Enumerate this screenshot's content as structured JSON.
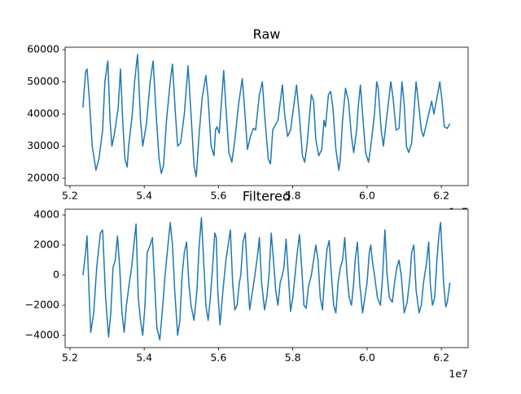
{
  "chart_data": [
    {
      "type": "line",
      "title": "Raw",
      "x_offset": "1e7",
      "color": "#1f77b4",
      "xlim": [
        51870000,
        62720000
      ],
      "ylim": [
        17720,
        60760
      ],
      "xticks": [
        {
          "value": 52000000,
          "label": "5.2"
        },
        {
          "value": 54000000,
          "label": "5.4"
        },
        {
          "value": 56000000,
          "label": "5.6"
        },
        {
          "value": 58000000,
          "label": "5.8"
        },
        {
          "value": 60000000,
          "label": "6.0"
        },
        {
          "value": 62000000,
          "label": "6.2"
        }
      ],
      "yticks": [
        20000,
        30000,
        40000,
        50000,
        60000
      ],
      "x": [
        52350000,
        52420000,
        52460000,
        52520000,
        52600000,
        52700000,
        52780000,
        52880000,
        52940000,
        53020000,
        53080000,
        53130000,
        53200000,
        53300000,
        53360000,
        53420000,
        53480000,
        53540000,
        53580000,
        53680000,
        53740000,
        53820000,
        53900000,
        53960000,
        54060000,
        54160000,
        54240000,
        54320000,
        54400000,
        54460000,
        54520000,
        54600000,
        54700000,
        54760000,
        54840000,
        54900000,
        54980000,
        55080000,
        55180000,
        55260000,
        55340000,
        55400000,
        55480000,
        55560000,
        55660000,
        55720000,
        55800000,
        55880000,
        55920000,
        55960000,
        56020000,
        56140000,
        56200000,
        56280000,
        56360000,
        56440000,
        56540000,
        56640000,
        56700000,
        56780000,
        56860000,
        56940000,
        57000000,
        57100000,
        57180000,
        57240000,
        57340000,
        57400000,
        57460000,
        57500000,
        57600000,
        57720000,
        57780000,
        57860000,
        57940000,
        58020000,
        58100000,
        58180000,
        58260000,
        58320000,
        58380000,
        58440000,
        58500000,
        58560000,
        58620000,
        58700000,
        58780000,
        58840000,
        58880000,
        58960000,
        59020000,
        59080000,
        59160000,
        59240000,
        59280000,
        59340000,
        59420000,
        59500000,
        59580000,
        59640000,
        59720000,
        59760000,
        59820000,
        59880000,
        59960000,
        60040000,
        60100000,
        60200000,
        60260000,
        60300000,
        60380000,
        60440000,
        60500000,
        60580000,
        60640000,
        60700000,
        60780000,
        60860000,
        60940000,
        61000000,
        61060000,
        61120000,
        61200000,
        61260000,
        61320000,
        61380000,
        61460000,
        61520000,
        61580000,
        61680000,
        61740000,
        61800000,
        61960000,
        62020000,
        62080000,
        62160000,
        62230000
      ],
      "values": [
        42000,
        53000,
        54000,
        45000,
        30000,
        22500,
        26000,
        35000,
        50000,
        56500,
        38000,
        30000,
        34000,
        42000,
        54000,
        38000,
        26000,
        23500,
        30000,
        40000,
        50000,
        58500,
        38000,
        30000,
        37000,
        50000,
        56500,
        40000,
        26000,
        21500,
        24000,
        38000,
        50000,
        55500,
        40000,
        30000,
        31000,
        40000,
        55000,
        40000,
        24000,
        20500,
        34000,
        45000,
        52000,
        45000,
        30000,
        27000,
        35000,
        36000,
        34000,
        53500,
        42000,
        28000,
        25000,
        32000,
        43000,
        51000,
        42000,
        29000,
        33000,
        35500,
        35000,
        46000,
        50000,
        40000,
        26000,
        24500,
        35000,
        36000,
        38000,
        49000,
        40000,
        33000,
        35000,
        42000,
        49000,
        39000,
        27000,
        25000,
        30000,
        38000,
        46000,
        44000,
        32000,
        27000,
        29000,
        38000,
        36000,
        46000,
        47000,
        42000,
        29000,
        22500,
        26000,
        38000,
        48000,
        44000,
        33000,
        28000,
        35000,
        42000,
        49000,
        40000,
        28000,
        25000,
        30000,
        40000,
        50000,
        48000,
        35000,
        30000,
        36000,
        44000,
        50000,
        45000,
        35000,
        35500,
        50000,
        43000,
        30000,
        28000,
        31000,
        40000,
        50000,
        44000,
        35000,
        33000,
        36000,
        41000,
        44000,
        40000,
        50000,
        44000,
        36000,
        35500,
        37000
      ]
    },
    {
      "type": "line",
      "title": "Filtered",
      "x_offset": "1e7",
      "color": "#1f77b4",
      "xlim": [
        51870000,
        62720000
      ],
      "ylim": [
        -4810,
        4380
      ],
      "xticks": [
        {
          "value": 52000000,
          "label": "5.2"
        },
        {
          "value": 54000000,
          "label": "5.4"
        },
        {
          "value": 56000000,
          "label": "5.6"
        },
        {
          "value": 58000000,
          "label": "5.8"
        },
        {
          "value": 60000000,
          "label": "6.0"
        },
        {
          "value": 62000000,
          "label": "6.2"
        }
      ],
      "yticks": [
        {
          "value": -4000,
          "label": "−4000"
        },
        {
          "value": -2000,
          "label": "−2000"
        },
        0,
        2000,
        4000
      ],
      "x": [
        52350000,
        52420000,
        52460000,
        52520000,
        52560000,
        52640000,
        52720000,
        52820000,
        52880000,
        52960000,
        53040000,
        53100000,
        53160000,
        53220000,
        53280000,
        53340000,
        53400000,
        53460000,
        53520000,
        53600000,
        53660000,
        53720000,
        53780000,
        53840000,
        53900000,
        53960000,
        54020000,
        54080000,
        54160000,
        54220000,
        54280000,
        54340000,
        54420000,
        54500000,
        54560000,
        54620000,
        54700000,
        54760000,
        54820000,
        54900000,
        54960000,
        55020000,
        55080000,
        55140000,
        55200000,
        55260000,
        55340000,
        55420000,
        55480000,
        55540000,
        55600000,
        55660000,
        55720000,
        55780000,
        55840000,
        55900000,
        55940000,
        55980000,
        56040000,
        56120000,
        56200000,
        56260000,
        56320000,
        56380000,
        56440000,
        56500000,
        56560000,
        56600000,
        56660000,
        56720000,
        56780000,
        56840000,
        56920000,
        56980000,
        57060000,
        57100000,
        57160000,
        57240000,
        57300000,
        57360000,
        57420000,
        57480000,
        57540000,
        57600000,
        57660000,
        57720000,
        57760000,
        57820000,
        57880000,
        57940000,
        58000000,
        58060000,
        58120000,
        58180000,
        58240000,
        58300000,
        58360000,
        58420000,
        58500000,
        58560000,
        58620000,
        58680000,
        58740000,
        58800000,
        58860000,
        58920000,
        58980000,
        59040000,
        59100000,
        59160000,
        59220000,
        59280000,
        59340000,
        59400000,
        59460000,
        59520000,
        59580000,
        59640000,
        59680000,
        59740000,
        59800000,
        59880000,
        59940000,
        60000000,
        60060000,
        60100000,
        60140000,
        60200000,
        60280000,
        60360000,
        60420000,
        60480000,
        60540000,
        60600000,
        60680000,
        60740000,
        60800000,
        60860000,
        60920000,
        61000000,
        61080000,
        61160000,
        61200000,
        61260000,
        61320000,
        61400000,
        61460000,
        61520000,
        61600000,
        61660000,
        61700000,
        61760000,
        61820000,
        61880000,
        61940000,
        61980000,
        62060000,
        62120000,
        62160000,
        62230000
      ],
      "values": [
        0,
        1500,
        2600,
        -1500,
        -3800,
        -2500,
        500,
        2800,
        3000,
        -1500,
        -4100,
        -2500,
        500,
        1000,
        2600,
        500,
        -2500,
        -3800,
        -2000,
        -500,
        500,
        2000,
        3400,
        -1500,
        -3000,
        -4000,
        -2000,
        1500,
        2000,
        2500,
        -500,
        -3500,
        -4300,
        -2000,
        0,
        1500,
        3500,
        2000,
        -1000,
        -4000,
        -3000,
        0,
        1500,
        2200,
        -500,
        -2000,
        -3000,
        -1000,
        2000,
        3800,
        1000,
        -2000,
        -3000,
        -1500,
        500,
        2800,
        2500,
        -1000,
        -3300,
        -1000,
        1000,
        2000,
        3000,
        -500,
        -2300,
        -2000,
        -500,
        0,
        2200,
        2800,
        0,
        -2300,
        -1000,
        0,
        1500,
        2500,
        -500,
        -2300,
        -1500,
        0,
        2800,
        1000,
        -1000,
        -2000,
        -500,
        0,
        500,
        2400,
        0,
        -2400,
        -1500,
        0,
        1500,
        2700,
        500,
        -2000,
        -2200,
        -800,
        0,
        1000,
        2000,
        1000,
        -1500,
        -2300,
        0,
        1700,
        2300,
        0,
        -2000,
        -2500,
        -500,
        500,
        1000,
        2500,
        0,
        -1500,
        -2000,
        -500,
        1000,
        2200,
        -500,
        -2500,
        -1500,
        -500,
        1500,
        2000,
        1000,
        0,
        -1500,
        -2000,
        0,
        3000,
        0,
        -1500,
        -1800,
        -500,
        500,
        1000,
        0,
        -2500,
        -1800,
        0,
        1500,
        2000,
        -1000,
        -2500,
        -2000,
        -500,
        800,
        2200,
        -500,
        -2000,
        -1500,
        1000,
        2800,
        3500,
        -500,
        -2100,
        -1800,
        -500
      ]
    }
  ]
}
